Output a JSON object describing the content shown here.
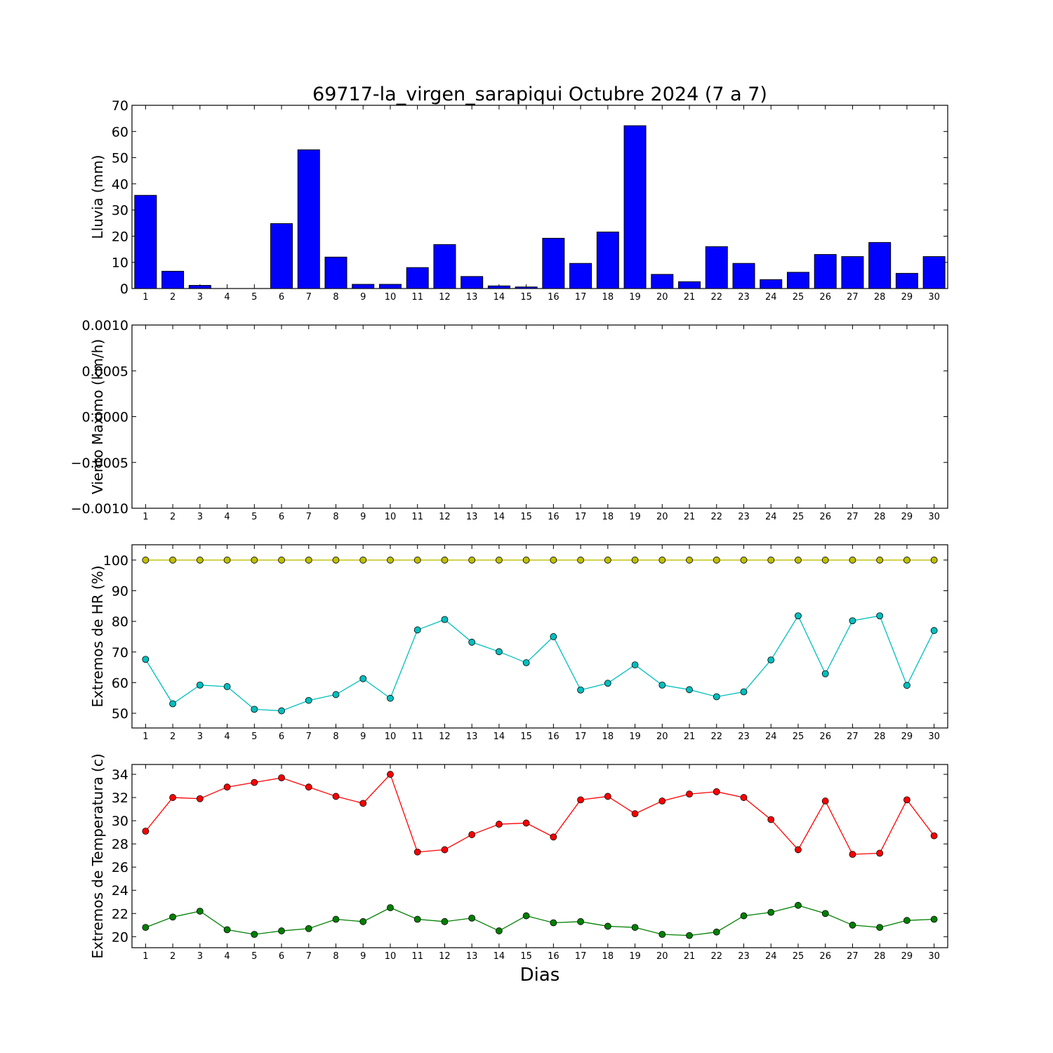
{
  "chart_data": {
    "title": "69717-la_virgen_sarapiqui Octubre 2024  (7 a 7)",
    "xlabel": "Dias",
    "days": [
      1,
      2,
      3,
      4,
      5,
      6,
      7,
      8,
      9,
      10,
      11,
      12,
      13,
      14,
      15,
      16,
      17,
      18,
      19,
      20,
      21,
      22,
      23,
      24,
      25,
      26,
      27,
      28,
      29,
      30
    ],
    "panels": [
      {
        "id": "lluvia",
        "type": "bar",
        "ylabel": "Lluvia (mm)",
        "ylim": [
          0,
          70
        ],
        "yticks": [
          0,
          10,
          20,
          30,
          40,
          50,
          60,
          70
        ],
        "ytick_labels": [
          "0",
          "10",
          "20",
          "30",
          "40",
          "50",
          "60",
          "70"
        ],
        "color": "#0000ff",
        "values": [
          35.6,
          6.6,
          1.2,
          0,
          0,
          24.8,
          53,
          12,
          1.6,
          1.6,
          8,
          16.8,
          4.6,
          1,
          0.6,
          19.2,
          9.6,
          21.6,
          62.2,
          5.4,
          2.6,
          16,
          9.6,
          3.4,
          6.2,
          13,
          12.2,
          17.6,
          5.8,
          12.2
        ]
      },
      {
        "id": "viento",
        "type": "line",
        "ylabel": "Viento Maximo (km/h)",
        "ylim": [
          -0.001,
          0.001
        ],
        "yticks": [
          -0.001,
          -0.0005,
          0,
          0.0005,
          0.001
        ],
        "ytick_labels": [
          "−0.0010",
          "−0.0005",
          "0.0000",
          "0.0005",
          "0.0010"
        ],
        "series": []
      },
      {
        "id": "hr",
        "type": "line",
        "ylabel": "Extremos de HR (%)",
        "ylim": [
          45.2,
          105
        ],
        "yticks": [
          50,
          60,
          70,
          80,
          90,
          100
        ],
        "ytick_labels": [
          "50",
          "60",
          "70",
          "80",
          "90",
          "100"
        ],
        "series": [
          {
            "color": "#bfbf00",
            "values": [
              100,
              100,
              100,
              100,
              100,
              100,
              100,
              100,
              100,
              100,
              100,
              100,
              100,
              100,
              100,
              100,
              100,
              100,
              100,
              100,
              100,
              100,
              100,
              100,
              100,
              100,
              100,
              100,
              100,
              100
            ]
          },
          {
            "color": "#00bfbf",
            "values": [
              67.6,
              53.1,
              59.2,
              58.7,
              51.3,
              50.8,
              54.2,
              56.1,
              61.3,
              54.9,
              77.2,
              80.6,
              73.2,
              70.1,
              66.5,
              75,
              57.6,
              59.8,
              65.8,
              59.2,
              57.7,
              55.4,
              57,
              67.4,
              81.8,
              62.9,
              80.2,
              81.8,
              59.1,
              77
            ]
          }
        ]
      },
      {
        "id": "temp",
        "type": "line",
        "ylabel": "Extremos de Temperatura (c)",
        "ylim": [
          19.05,
          34.85
        ],
        "yticks": [
          20,
          22,
          24,
          26,
          28,
          30,
          32,
          34
        ],
        "ytick_labels": [
          "20",
          "22",
          "24",
          "26",
          "28",
          "30",
          "32",
          "34"
        ],
        "series": [
          {
            "color": "#ff0000",
            "values": [
              29.1,
              32,
              31.9,
              32.9,
              33.3,
              33.7,
              32.9,
              32.1,
              31.5,
              34,
              27.3,
              27.5,
              28.8,
              29.7,
              29.8,
              28.6,
              31.8,
              32.1,
              30.6,
              31.7,
              32.3,
              32.5,
              32,
              30.1,
              27.5,
              31.7,
              27.1,
              27.2,
              31.8,
              28.7
            ]
          },
          {
            "color": "#008000",
            "values": [
              20.8,
              21.7,
              22.2,
              20.6,
              20.2,
              20.5,
              20.7,
              21.5,
              21.3,
              22.5,
              21.5,
              21.3,
              21.6,
              20.5,
              21.8,
              21.2,
              21.3,
              20.9,
              20.8,
              20.2,
              20.1,
              20.4,
              21.8,
              22.1,
              22.7,
              22,
              21,
              20.8,
              21.4,
              21.5
            ]
          }
        ]
      }
    ]
  }
}
